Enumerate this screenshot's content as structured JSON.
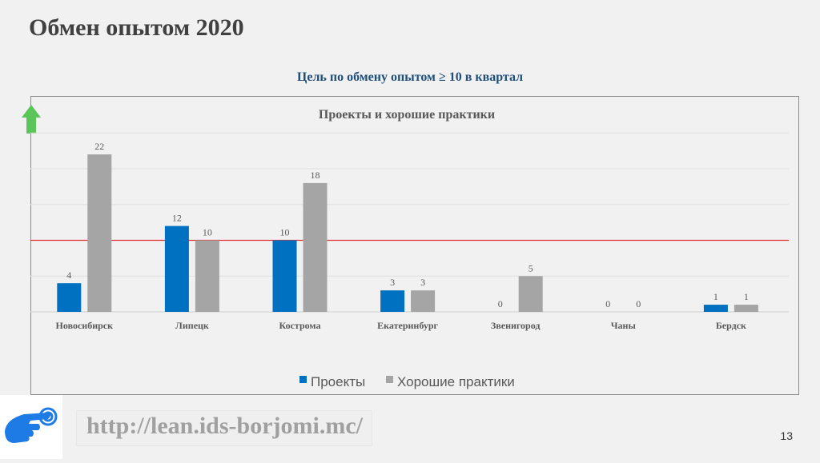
{
  "slide_title": "Обмен опытом 2020",
  "goal_text": "Цель по обмену опытом ≥ 10 в квартал",
  "url": "http://lean.ids-borjomi.mc/",
  "page_number": "13",
  "colors": {
    "projects": "#0070c0",
    "practices": "#a5a5a5",
    "target_line": "#e03030",
    "arrow": "#5cc55a"
  },
  "chart_data": {
    "type": "bar",
    "title": "Проекты и хорошие практики",
    "categories": [
      "Новосибирск",
      "Липецк",
      "Кострома",
      "Екатеринбург",
      "Звенигород",
      "Чаны",
      "Бердск"
    ],
    "series": [
      {
        "name": "Проекты",
        "values": [
          4,
          12,
          10,
          3,
          0,
          0,
          1
        ]
      },
      {
        "name": "Хорошие практики",
        "values": [
          22,
          10,
          18,
          3,
          5,
          0,
          1
        ]
      }
    ],
    "ylim": [
      0,
      25
    ],
    "gridlines": [
      0,
      5,
      10,
      15,
      20,
      25
    ],
    "target": 10,
    "legend": "bottom",
    "xlabel": "",
    "ylabel": ""
  }
}
